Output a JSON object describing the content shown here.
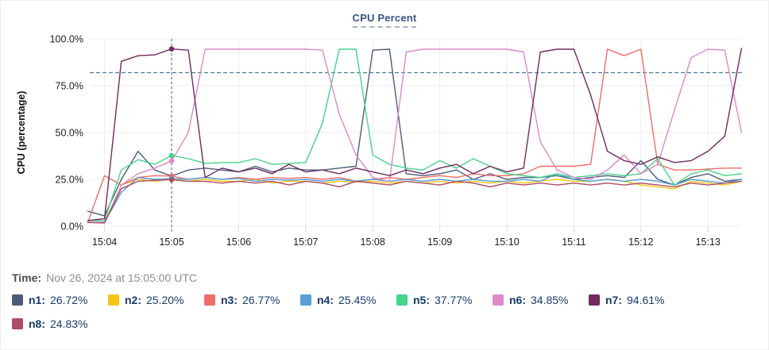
{
  "title": "CPU Percent",
  "footer": {
    "time_label": "Time:",
    "time_value": "Nov 26, 2024 at 15:05:00 UTC"
  },
  "legend": [
    {
      "label": "n1:",
      "value": "26.72%",
      "color": "#4C5C78"
    },
    {
      "label": "n2:",
      "value": "25.20%",
      "color": "#F6C416"
    },
    {
      "label": "n3:",
      "value": "26.77%",
      "color": "#EE6D68"
    },
    {
      "label": "n4:",
      "value": "25.45%",
      "color": "#54A0D5"
    },
    {
      "label": "n5:",
      "value": "37.77%",
      "color": "#44D48D"
    },
    {
      "label": "n6:",
      "value": "34.85%",
      "color": "#DB8ACA"
    },
    {
      "label": "n7:",
      "value": "94.61%",
      "color": "#702B61"
    },
    {
      "label": "n8:",
      "value": "24.83%",
      "color": "#AB4D63"
    }
  ],
  "chart_data": {
    "type": "line",
    "title": "CPU Percent",
    "xlabel": "",
    "ylabel": "CPU (percentage)",
    "ylim": [
      0,
      100
    ],
    "y_tick_values": [
      0,
      25,
      50,
      75,
      100
    ],
    "y_tick_labels": [
      "0.0%",
      "25.0%",
      "50.0%",
      "75.0%",
      "100.0%"
    ],
    "x_ticks": [
      "15:04",
      "15:05",
      "15:06",
      "15:07",
      "15:08",
      "15:09",
      "15:10",
      "15:11",
      "15:12",
      "15:13"
    ],
    "x_start": "15:03:45",
    "x_step_seconds": 15,
    "grid": true,
    "legend_position": "bottom",
    "threshold_percent": 82,
    "crosshair": {
      "time": "15:05:00",
      "index": 5
    },
    "colors": {
      "grid": "#ECECEC",
      "tick": "#D9D9D9",
      "dashed": "#4E7E90",
      "axis_text": "#1c1c1c"
    },
    "series": [
      {
        "name": "n1",
        "color": "#4C5C78",
        "value_at_crosshair": 26.72,
        "values": [
          8,
          5.5,
          25,
          40,
          30,
          26.72,
          30,
          31,
          30,
          29,
          32,
          29,
          31,
          30,
          30,
          31,
          32,
          94,
          94.5,
          28,
          27,
          28,
          30,
          25,
          28,
          25,
          26,
          26,
          27,
          25,
          26,
          27,
          26,
          35,
          25,
          22,
          26,
          28,
          24,
          25
        ]
      },
      {
        "name": "n2",
        "color": "#F6C416",
        "value_at_crosshair": 25.2,
        "values": [
          2,
          2,
          22,
          25,
          24,
          25.2,
          24,
          25,
          24,
          24,
          25,
          23,
          24,
          24,
          23,
          24,
          23.5,
          24,
          23,
          24,
          23,
          24,
          23,
          24,
          23,
          24,
          23,
          24,
          25,
          24,
          24,
          25,
          24,
          22,
          21,
          20,
          24,
          23,
          22,
          24
        ]
      },
      {
        "name": "n3",
        "color": "#EE6D68",
        "value_at_crosshair": 26.77,
        "values": [
          2,
          27,
          22,
          26,
          27,
          26.77,
          25,
          26,
          25,
          26,
          25,
          26,
          25.5,
          26,
          25,
          26,
          24,
          25,
          26,
          25,
          26,
          27,
          26,
          28,
          27,
          27,
          28,
          32,
          32,
          32,
          33,
          94.5,
          91,
          94.5,
          33,
          30,
          30,
          30.5,
          31,
          31
        ]
      },
      {
        "name": "n4",
        "color": "#54A0D5",
        "value_at_crosshair": 25.45,
        "values": [
          2,
          2,
          18,
          26,
          25,
          25.45,
          25,
          26,
          25,
          25.5,
          24,
          25,
          24.5,
          25,
          24,
          25,
          24,
          25,
          24,
          25,
          24,
          25,
          24,
          25,
          24,
          24,
          25,
          24,
          28,
          25,
          24,
          25,
          24,
          25,
          24,
          22,
          25,
          24,
          23,
          25
        ]
      },
      {
        "name": "n5",
        "color": "#44D48D",
        "value_at_crosshair": 37.77,
        "values": [
          3,
          3,
          30,
          35.5,
          33,
          37.77,
          36,
          33.5,
          34,
          34,
          36,
          33,
          33.5,
          34,
          55,
          94.5,
          94.5,
          38,
          33,
          31,
          30,
          35,
          31,
          36,
          32,
          28,
          27,
          26,
          28,
          26,
          27,
          28,
          27,
          28,
          36,
          22,
          28,
          30,
          27,
          28
        ]
      },
      {
        "name": "n6",
        "color": "#DB8ACA",
        "value_at_crosshair": 34.85,
        "values": [
          2,
          1.5,
          22,
          28,
          31,
          34.85,
          50,
          94.5,
          94.5,
          94.5,
          94.5,
          94.5,
          94.5,
          94.5,
          94,
          60,
          38,
          26,
          24,
          93,
          94.5,
          94.5,
          94.5,
          94.5,
          94.5,
          94.5,
          93,
          45,
          30,
          26,
          25,
          30,
          38,
          28,
          33,
          62,
          90,
          94.5,
          94,
          50
        ]
      },
      {
        "name": "n7",
        "color": "#702B61",
        "value_at_crosshair": 94.61,
        "values": [
          3,
          4,
          88,
          91,
          91.5,
          94.61,
          94,
          26,
          31,
          29,
          31,
          28,
          33,
          29,
          30,
          28,
          31,
          29,
          27,
          30,
          28,
          31,
          33,
          28,
          32,
          29,
          31,
          93,
          94.5,
          94.5,
          70,
          40,
          35,
          33,
          37,
          34,
          35,
          40,
          48,
          95
        ]
      },
      {
        "name": "n8",
        "color": "#AB4D63",
        "value_at_crosshair": 24.83,
        "values": [
          2,
          2,
          20,
          24,
          24.5,
          24.83,
          24,
          24,
          23,
          24,
          23,
          24,
          22,
          24,
          23,
          21,
          24,
          23,
          22,
          24,
          23,
          22,
          24,
          23,
          21,
          23,
          22,
          23,
          22,
          23,
          22,
          23,
          22,
          23,
          22,
          21,
          23,
          22,
          23,
          24
        ]
      }
    ]
  }
}
